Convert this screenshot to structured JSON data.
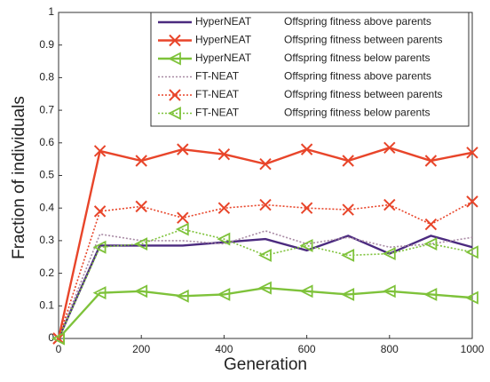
{
  "chart_data": {
    "type": "line",
    "x_label": "Generation",
    "y_label": "Fraction of individuals",
    "x": [
      0,
      100,
      200,
      300,
      400,
      500,
      600,
      700,
      800,
      900,
      1000
    ],
    "xlim": [
      0,
      1000
    ],
    "xticks": [
      0,
      200,
      400,
      600,
      800,
      1000
    ],
    "ylim": [
      0,
      1
    ],
    "yticks": [
      0,
      0.1,
      0.2,
      0.3,
      0.4,
      0.5,
      0.6,
      0.7,
      0.8,
      0.9,
      1
    ],
    "grid": false,
    "legend": "upper right",
    "series": [
      {
        "name": "HyperNEAT",
        "label": "Offspring fitness above parents",
        "color": "#4b2a7f",
        "line_style": "solid",
        "marker": "none",
        "values": [
          0,
          0.285,
          0.285,
          0.285,
          0.295,
          0.305,
          0.27,
          0.315,
          0.26,
          0.315,
          0.28
        ]
      },
      {
        "name": "HyperNEAT",
        "label": "Offspring fitness between parents",
        "color": "#e8452a",
        "line_style": "solid",
        "marker": "x",
        "values": [
          0,
          0.575,
          0.545,
          0.58,
          0.565,
          0.535,
          0.58,
          0.545,
          0.585,
          0.545,
          0.57
        ]
      },
      {
        "name": "HyperNEAT",
        "label": "Offspring fitness below parents",
        "color": "#7ec23a",
        "line_style": "solid",
        "marker": "triangle-left",
        "values": [
          0,
          0.14,
          0.145,
          0.13,
          0.135,
          0.155,
          0.145,
          0.135,
          0.145,
          0.135,
          0.125
        ]
      },
      {
        "name": "FT-NEAT",
        "label": "Offspring fitness above parents",
        "color": "#a88aa4",
        "line_style": "dotted",
        "marker": "none",
        "values": [
          0,
          0.32,
          0.3,
          0.3,
          0.29,
          0.33,
          0.29,
          0.31,
          0.28,
          0.29,
          0.31
        ]
      },
      {
        "name": "FT-NEAT",
        "label": "Offspring fitness between parents",
        "color": "#e8452a",
        "line_style": "dotted",
        "marker": "x",
        "values": [
          0,
          0.39,
          0.405,
          0.37,
          0.4,
          0.41,
          0.4,
          0.395,
          0.41,
          0.35,
          0.42
        ]
      },
      {
        "name": "FT-NEAT",
        "label": "Offspring fitness below parents",
        "color": "#7ec23a",
        "line_style": "dotted",
        "marker": "triangle-left",
        "values": [
          0,
          0.28,
          0.29,
          0.335,
          0.305,
          0.255,
          0.285,
          0.255,
          0.26,
          0.29,
          0.265
        ]
      }
    ]
  }
}
